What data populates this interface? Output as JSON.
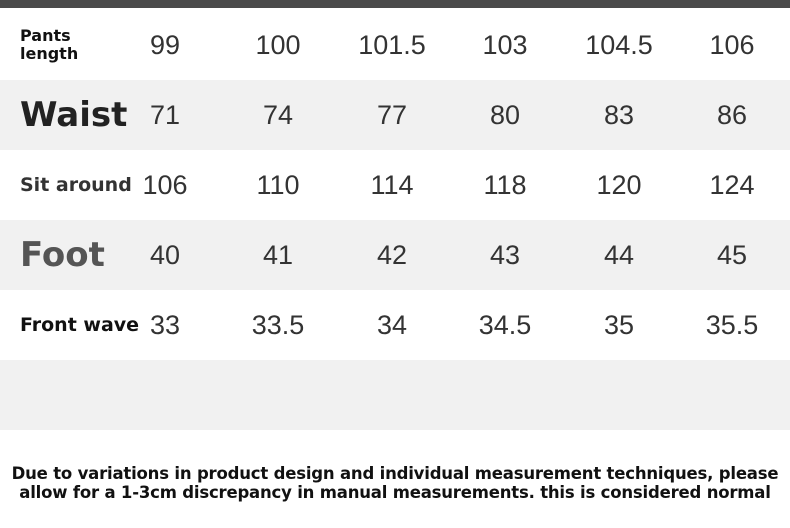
{
  "table": {
    "rows": [
      {
        "label": "Pants length",
        "values": [
          99,
          100,
          101.5,
          103,
          104.5,
          106
        ]
      },
      {
        "label": "Waist",
        "values": [
          71,
          74,
          77,
          80,
          83,
          86
        ]
      },
      {
        "label": "Sit around",
        "values": [
          106,
          110,
          114,
          118,
          120,
          124
        ]
      },
      {
        "label": "Foot",
        "values": [
          40,
          41,
          42,
          43,
          44,
          45
        ]
      },
      {
        "label": "Front wave",
        "values": [
          33,
          33.5,
          34,
          34.5,
          35,
          35.5
        ]
      }
    ]
  },
  "note": {
    "lines": [
      "Due to variations in product design and individual measurement techniques, please",
      "allow for a 1-3cm discrepancy in manual measurements. this is considered normal"
    ]
  }
}
